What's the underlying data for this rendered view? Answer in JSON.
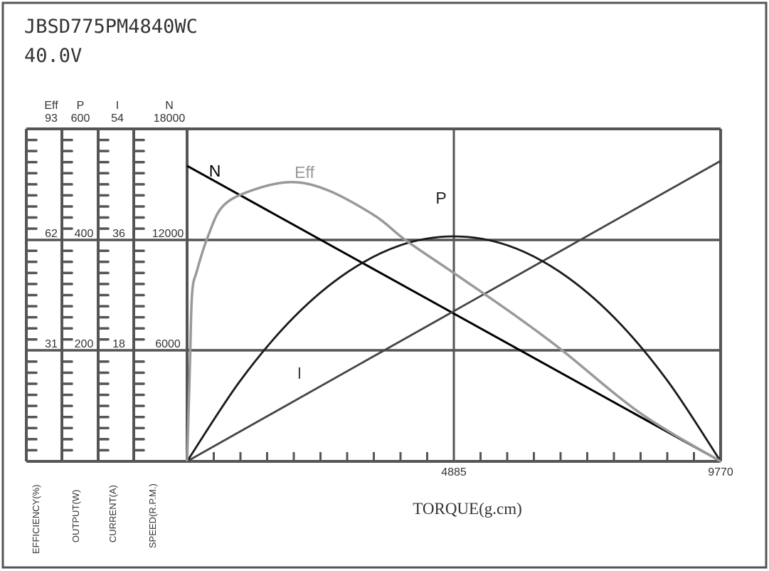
{
  "header": {
    "model": "JBSD775PM4840WC",
    "voltage": "40.0V"
  },
  "chart_data": {
    "type": "line",
    "xlabel": "TORQUE(g.cm)",
    "xlim": [
      0,
      9770
    ],
    "x_ticks": [
      "4885",
      "9770"
    ],
    "grid": true,
    "axes": [
      {
        "key": "Eff",
        "short": "Eff",
        "label": "EFFICIENCY(%)",
        "max": 93,
        "ticks": [
          "93",
          "62",
          "31"
        ]
      },
      {
        "key": "P",
        "short": "P",
        "label": "OUTPUT(W)",
        "max": 600,
        "ticks": [
          "600",
          "400",
          "200"
        ]
      },
      {
        "key": "I",
        "short": "I",
        "label": "CURRENT(A)",
        "max": 54,
        "ticks": [
          "54",
          "36",
          "18"
        ]
      },
      {
        "key": "N",
        "short": "N",
        "label": "SPEED(R.P.M.)",
        "max": 18000,
        "ticks": [
          "18000",
          "12000",
          "6000"
        ]
      }
    ],
    "series": [
      {
        "name": "N",
        "axis": "N",
        "color": "#000000",
        "x": [
          0,
          9770
        ],
        "y": [
          16000,
          0
        ]
      },
      {
        "name": "I",
        "axis": "I",
        "color": "#444444",
        "x": [
          0,
          9770
        ],
        "y": [
          0,
          48.8
        ]
      },
      {
        "name": "P",
        "axis": "P",
        "color": "#1a1a1a",
        "x": [
          0,
          977,
          1954,
          2931,
          3908,
          4885,
          5862,
          6839,
          7816,
          8793,
          9770
        ],
        "y": [
          0,
          146,
          260,
          341,
          390,
          406,
          390,
          341,
          260,
          146,
          0
        ]
      },
      {
        "name": "Eff",
        "axis": "Eff",
        "color": "#999999",
        "x": [
          0,
          52,
          91,
          182,
          391,
          651,
          1133,
          1876,
          2566,
          3439,
          3999,
          4872,
          5953,
          6865,
          8298,
          9770
        ],
        "y": [
          0,
          26.9,
          46.8,
          53.4,
          63.3,
          71.3,
          75.5,
          78.1,
          75.9,
          68.7,
          61.9,
          52.8,
          41.4,
          31.1,
          13.5,
          0
        ]
      }
    ]
  }
}
